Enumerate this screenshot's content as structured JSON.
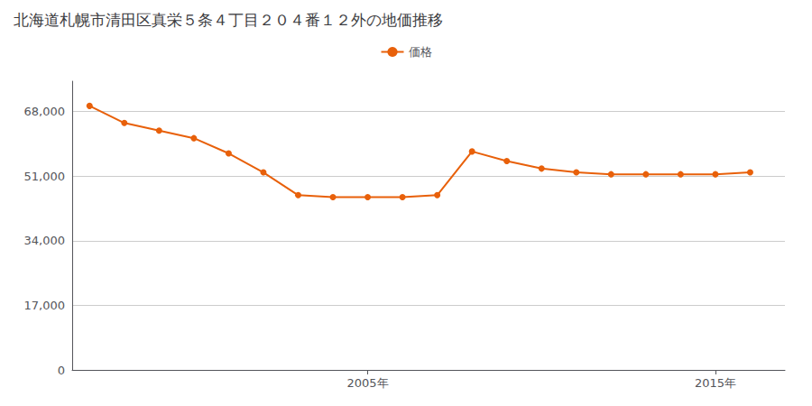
{
  "chart_data": {
    "type": "line",
    "title": "北海道札幌市清田区真栄５条４丁目２０４番１２外の地価推移",
    "x": [
      1997,
      1998,
      1999,
      2000,
      2001,
      2002,
      2003,
      2004,
      2005,
      2006,
      2007,
      2008,
      2009,
      2010,
      2011,
      2012,
      2013,
      2014,
      2015,
      2016
    ],
    "series": [
      {
        "name": "価格",
        "color": "#E8600A",
        "marker": "circle",
        "values": [
          69500,
          65000,
          63000,
          61000,
          57000,
          52000,
          46000,
          45500,
          45500,
          45500,
          46000,
          57500,
          55000,
          53000,
          52000,
          51500,
          51500,
          51500,
          51500,
          52000
        ]
      }
    ],
    "xlim": [
      1996.5,
      2017
    ],
    "xticks": [
      {
        "value": 2005,
        "label": "2005年"
      },
      {
        "value": 2015,
        "label": "2015年"
      }
    ],
    "ylim": [
      0,
      76000
    ],
    "yticks": [
      0,
      {
        "value": 17000,
        "label": "17,000"
      },
      {
        "value": 34000,
        "label": "34,000"
      },
      {
        "value": 51000,
        "label": "51,000"
      },
      {
        "value": 68000,
        "label": "68,000"
      }
    ],
    "grid": "y",
    "legend": "top"
  }
}
